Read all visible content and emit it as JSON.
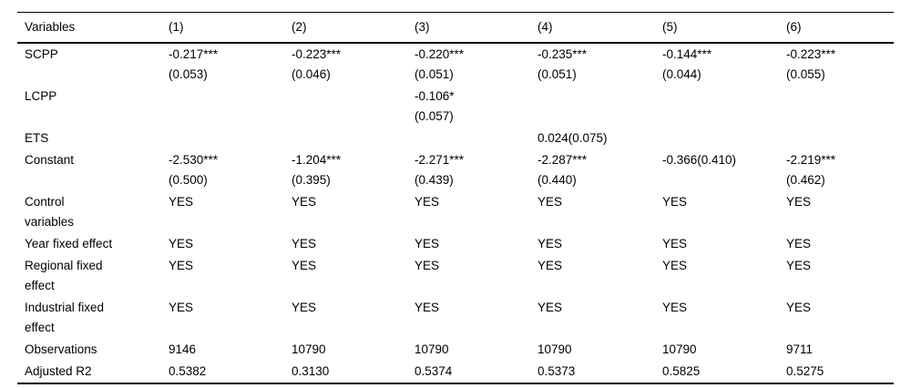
{
  "table": {
    "header": [
      "Variables",
      "(1)",
      "(2)",
      "(3)",
      "(4)",
      "(5)",
      "(6)"
    ],
    "rows": [
      {
        "label": [
          "SCPP"
        ],
        "cells": [
          [
            "-0.217***",
            "(0.053)"
          ],
          [
            "-0.223***",
            "(0.046)"
          ],
          [
            "-0.220***",
            "(0.051)"
          ],
          [
            "-0.235***",
            "(0.051)"
          ],
          [
            "-0.144***",
            "(0.044)"
          ],
          [
            "-0.223***",
            "(0.055)"
          ]
        ]
      },
      {
        "label": [
          "LCPP"
        ],
        "cells": [
          [],
          [],
          [
            "-0.106*",
            "(0.057)"
          ],
          [],
          [],
          []
        ]
      },
      {
        "label": [
          "ETS"
        ],
        "cells": [
          [],
          [],
          [],
          [
            "0.024(0.075)"
          ],
          [],
          []
        ]
      },
      {
        "label": [
          "Constant"
        ],
        "cells": [
          [
            "-2.530***",
            "(0.500)"
          ],
          [
            "-1.204***",
            "(0.395)"
          ],
          [
            "-2.271***",
            "(0.439)"
          ],
          [
            "-2.287***",
            "(0.440)"
          ],
          [
            "-0.366(0.410)"
          ],
          [
            "-2.219***",
            "(0.462)"
          ]
        ]
      },
      {
        "label": [
          "Control",
          "variables"
        ],
        "cells": [
          [
            "YES"
          ],
          [
            "YES"
          ],
          [
            "YES"
          ],
          [
            "YES"
          ],
          [
            "YES"
          ],
          [
            "YES"
          ]
        ]
      },
      {
        "label": [
          "Year fixed effect"
        ],
        "cells": [
          [
            "YES"
          ],
          [
            "YES"
          ],
          [
            "YES"
          ],
          [
            "YES"
          ],
          [
            "YES"
          ],
          [
            "YES"
          ]
        ]
      },
      {
        "label": [
          "Regional fixed",
          "effect"
        ],
        "cells": [
          [
            "YES"
          ],
          [
            "YES"
          ],
          [
            "YES"
          ],
          [
            "YES"
          ],
          [
            "YES"
          ],
          [
            "YES"
          ]
        ]
      },
      {
        "label": [
          "Industrial fixed",
          "effect"
        ],
        "cells": [
          [
            "YES"
          ],
          [
            "YES"
          ],
          [
            "YES"
          ],
          [
            "YES"
          ],
          [
            "YES"
          ],
          [
            "YES"
          ]
        ]
      },
      {
        "label": [
          "Observations"
        ],
        "cells": [
          [
            "9146"
          ],
          [
            "10790"
          ],
          [
            "10790"
          ],
          [
            "10790"
          ],
          [
            "10790"
          ],
          [
            "9711"
          ]
        ]
      },
      {
        "label": [
          "Adjusted R2"
        ],
        "cells": [
          [
            "0.5382"
          ],
          [
            "0.3130"
          ],
          [
            "0.5374"
          ],
          [
            "0.5373"
          ],
          [
            "0.5825"
          ],
          [
            "0.5275"
          ]
        ]
      }
    ]
  }
}
